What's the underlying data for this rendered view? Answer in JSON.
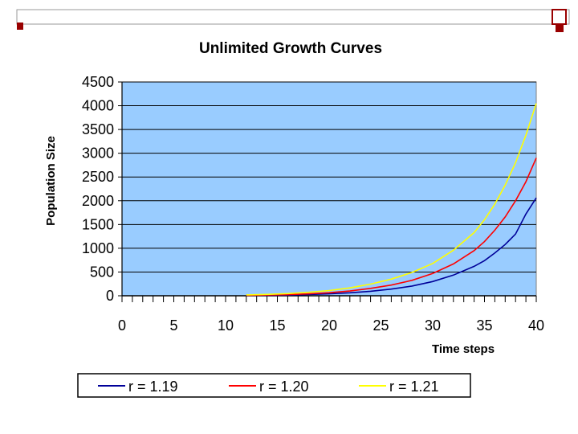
{
  "chart_data": {
    "type": "line",
    "title": "Unlimited Growth Curves",
    "xlabel": "Time steps",
    "ylabel": "Population Size",
    "xlim": [
      0,
      40
    ],
    "ylim": [
      0,
      4500
    ],
    "x_ticks": [
      "0",
      "5",
      "10",
      "15",
      "20",
      "25",
      "30",
      "35",
      "40"
    ],
    "y_ticks": [
      "0",
      "500",
      "1000",
      "1500",
      "2000",
      "2500",
      "3000",
      "3500",
      "4000",
      "4500"
    ],
    "grid": "horizontal",
    "legend_position": "bottom",
    "plot_background": "#99ccff",
    "x": [
      12,
      14,
      16,
      18,
      20,
      22,
      24,
      26,
      28,
      30,
      32,
      34,
      35,
      36,
      37,
      38,
      39,
      40
    ],
    "series": [
      {
        "name": "r = 1.19",
        "color": "#000099",
        "values": [
          6,
          9,
          14,
          25,
          40,
          62,
          95,
          140,
          205,
          300,
          435,
          620,
          740,
          900,
          1080,
          1300,
          1720,
          2060
        ]
      },
      {
        "name": "r = 1.20",
        "color": "#ff0000",
        "values": [
          10,
          16,
          24,
          40,
          65,
          100,
          155,
          225,
          325,
          470,
          670,
          950,
          1140,
          1380,
          1660,
          2000,
          2400,
          2900
        ]
      },
      {
        "name": "r = 1.21",
        "color": "#ffff00",
        "values": [
          18,
          28,
          45,
          72,
          110,
          165,
          245,
          350,
          490,
          680,
          960,
          1330,
          1600,
          1930,
          2330,
          2800,
          3380,
          4050
        ]
      }
    ]
  }
}
